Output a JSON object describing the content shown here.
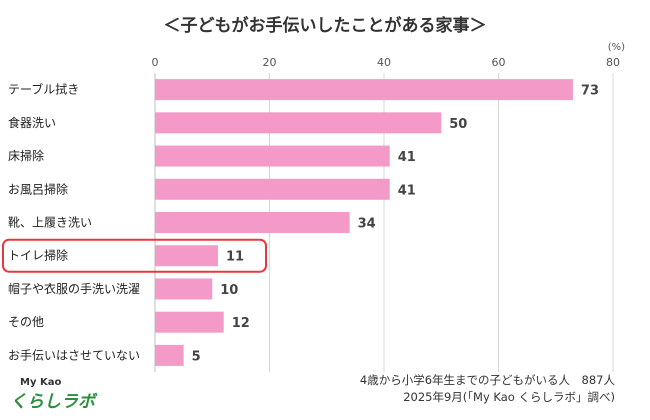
{
  "chart_data": {
    "type": "bar",
    "orientation": "horizontal",
    "title": "＜子どもがお手伝いしたことがある家事＞",
    "unit": "(%)",
    "xlim": [
      0,
      80
    ],
    "ticks": [
      0,
      20,
      40,
      60,
      80
    ],
    "grid": true,
    "categories": [
      "テーブル拭き",
      "食器洗い",
      "床掃除",
      "お風呂掃除",
      "靴、上履き洗い",
      "トイレ掃除",
      "帽子や衣服の手洗い洗濯",
      "その他",
      "お手伝いはさせていない"
    ],
    "values": [
      73,
      50,
      41,
      41,
      34,
      11,
      10,
      12,
      5
    ],
    "highlighted_category": "トイレ掃除",
    "colors": {
      "bar": "#f49ac8",
      "highlight_box": "#e8383d",
      "grid": "#d8d8d8"
    }
  },
  "footnote": {
    "line1": "4歳から小学6年生までの子どもがいる人　887人",
    "line2": "2025年9月(「My Kao くらしラボ」調べ)"
  },
  "logo": {
    "top": "My Kao",
    "main": "くらしラボ",
    "color": "#2a8f3f"
  }
}
